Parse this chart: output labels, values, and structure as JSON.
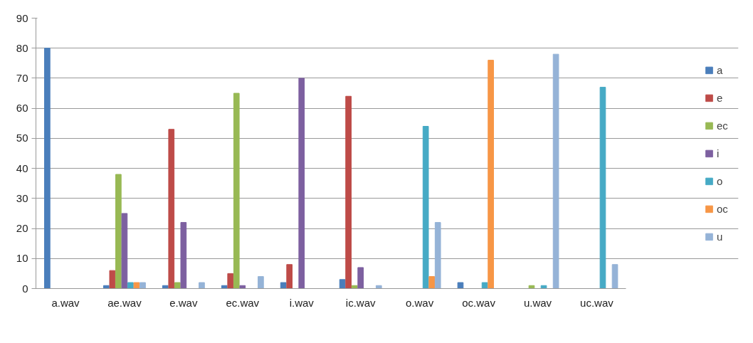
{
  "chart_data": {
    "type": "bar",
    "categories": [
      "a.wav",
      "ae.wav",
      "e.wav",
      "ec.wav",
      "i.wav",
      "ic.wav",
      "o.wav",
      "oc.wav",
      "u.wav",
      "uc.wav"
    ],
    "series": [
      {
        "name": "a",
        "color": "#4a7ebb",
        "values": [
          80,
          1,
          1,
          1,
          2,
          3,
          0,
          2,
          0,
          0
        ]
      },
      {
        "name": "e",
        "color": "#be4b48",
        "values": [
          0,
          6,
          53,
          5,
          8,
          64,
          0,
          0,
          0,
          0
        ]
      },
      {
        "name": "ec",
        "color": "#98b954",
        "values": [
          0,
          38,
          2,
          65,
          0,
          1,
          0,
          0,
          1,
          0
        ]
      },
      {
        "name": "i",
        "color": "#7d60a0",
        "values": [
          0,
          25,
          22,
          1,
          70,
          7,
          0,
          0,
          0,
          0
        ]
      },
      {
        "name": "o",
        "color": "#46aac5",
        "values": [
          0,
          2,
          0,
          0,
          0,
          0,
          54,
          2,
          1,
          67
        ]
      },
      {
        "name": "oc",
        "color": "#f79646",
        "values": [
          0,
          2,
          0,
          0,
          0,
          0,
          4,
          76,
          0,
          0
        ]
      },
      {
        "name": "u",
        "color": "#95b3d7",
        "values": [
          0,
          2,
          2,
          4,
          0,
          1,
          22,
          0,
          78,
          8
        ]
      }
    ],
    "ylim": [
      0,
      90
    ],
    "yticks": [
      0,
      10,
      20,
      30,
      40,
      50,
      60,
      70,
      80,
      90
    ],
    "grid": "y",
    "legend": "right"
  }
}
